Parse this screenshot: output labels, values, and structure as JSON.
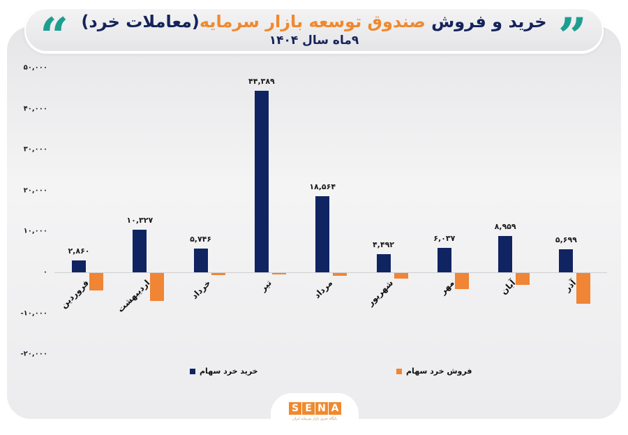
{
  "header": {
    "title_part1": "خرید و فروش",
    "title_accent": "صندوق توسعه بازار سرمایه",
    "title_part2": "(معاملات خرد)",
    "subtitle": "۹ماه سال ۱۴۰۴",
    "quote_open_icon": "“",
    "quote_close_icon": "”"
  },
  "colors": {
    "buy": "#0f2461",
    "sell": "#ef8535",
    "title": "#14235a",
    "accent": "#f0892e",
    "quote": "#1f9e8f"
  },
  "chart_data": {
    "type": "bar",
    "title": "خرید و فروش صندوق توسعه بازار سرمایه (معاملات خرد) - ۹ماه سال ۱۴۰۴",
    "xlabel": "",
    "ylabel": "",
    "ylim": [
      -20000,
      50000
    ],
    "yticks": [
      50000,
      40000,
      30000,
      20000,
      10000,
      0,
      -10000,
      -20000
    ],
    "ytick_labels": [
      "۵۰,۰۰۰",
      "۴۰,۰۰۰",
      "۳۰,۰۰۰",
      "۲۰,۰۰۰",
      "۱۰,۰۰۰",
      "۰",
      "-۱۰,۰۰۰",
      "-۲۰,۰۰۰"
    ],
    "grid": false,
    "legend_position": "bottom",
    "categories": [
      "فروردین",
      "اردیبهشت",
      "خرداد",
      "تیر",
      "مرداد",
      "شهریور",
      "مهر",
      "آبان",
      "آذر"
    ],
    "series": [
      {
        "name": "خرید خرد سهام",
        "color": "#0f2461",
        "values": [
          2860,
          10327,
          5746,
          44389,
          18564,
          4492,
          6037,
          8959,
          5699
        ],
        "labels": [
          "۲,۸۶۰",
          "۱۰,۳۲۷",
          "۵,۷۴۶",
          "۴۴,۳۸۹",
          "۱۸,۵۶۴",
          "۴,۴۹۲",
          "۶,۰۳۷",
          "۸,۹۵۹",
          "۵,۶۹۹"
        ]
      },
      {
        "name": "فروش خرد سهام",
        "color": "#ef8535",
        "values": [
          -4300,
          -6800,
          -500,
          -400,
          -700,
          -1300,
          -3900,
          -2900,
          -7500
        ]
      }
    ]
  },
  "legend": {
    "buy_label": "خرید خرد سهام",
    "sell_label": "فروش خرد سهام"
  },
  "logo": {
    "letters": [
      "S",
      "E",
      "N",
      "A"
    ],
    "tagline": "پایگاه خبری بازار سرمایه ایران"
  }
}
